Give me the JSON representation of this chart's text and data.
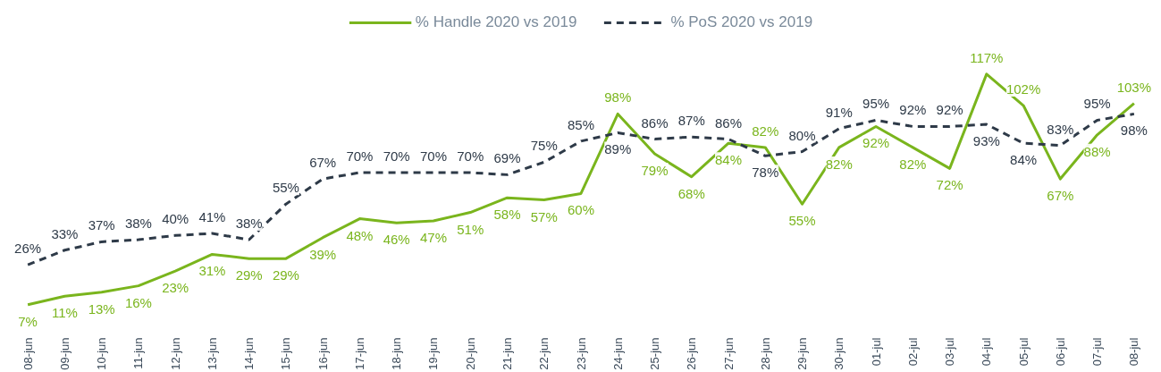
{
  "chart_data": {
    "type": "line",
    "categories": [
      "08-jun",
      "09-jun",
      "10-jun",
      "11-jun",
      "12-jun",
      "13-jun",
      "14-jun",
      "15-jun",
      "16-jun",
      "17-jun",
      "18-jun",
      "19-jun",
      "20-jun",
      "21-jun",
      "22-jun",
      "23-jun",
      "24-jun",
      "25-jun",
      "26-jun",
      "27-jun",
      "28-jun",
      "29-jun",
      "30-jun",
      "01-jul",
      "02-jul",
      "03-jul",
      "04-jul",
      "05-jul",
      "06-jul",
      "07-jul",
      "08-jul"
    ],
    "series": [
      {
        "name": "% Handle 2020 vs 2019",
        "color": "#7ab51d",
        "line_style": "solid",
        "values": [
          7,
          11,
          13,
          16,
          23,
          31,
          29,
          29,
          39,
          48,
          46,
          47,
          51,
          58,
          57,
          60,
          98,
          79,
          68,
          84,
          82,
          55,
          82,
          92,
          82,
          72,
          117,
          102,
          67,
          88,
          103
        ],
        "value_labels": [
          "7%",
          "11%",
          "13%",
          "16%",
          "23%",
          "31%",
          "29%",
          "29%",
          "39%",
          "48%",
          "46%",
          "47%",
          "51%",
          "58%",
          "57%",
          "60%",
          "98%",
          "79%",
          "68%",
          "84%",
          "82%",
          "55%",
          "82%",
          "92%",
          "82%",
          "72%",
          "117%",
          "102%",
          "67%",
          "88%",
          "103%"
        ]
      },
      {
        "name": "% PoS 2020 vs 2019",
        "color": "#2e3a48",
        "line_style": "dashed",
        "values": [
          26,
          33,
          37,
          38,
          40,
          41,
          38,
          55,
          67,
          70,
          70,
          70,
          70,
          69,
          75,
          85,
          89,
          86,
          87,
          86,
          78,
          80,
          91,
          95,
          92,
          92,
          93,
          84,
          83,
          95,
          98
        ],
        "value_labels": [
          "26%",
          "33%",
          "37%",
          "38%",
          "40%",
          "41%",
          "38%",
          "55%",
          "67%",
          "70%",
          "70%",
          "70%",
          "70%",
          "69%",
          "75%",
          "85%",
          "89%",
          "86%",
          "87%",
          "86%",
          "78%",
          "80%",
          "91%",
          "95%",
          "92%",
          "92%",
          "93%",
          "84%",
          "83%",
          "95%",
          "98%"
        ]
      }
    ],
    "legend": "top",
    "grid": false,
    "tick_labels": "x",
    "marker": "none"
  }
}
